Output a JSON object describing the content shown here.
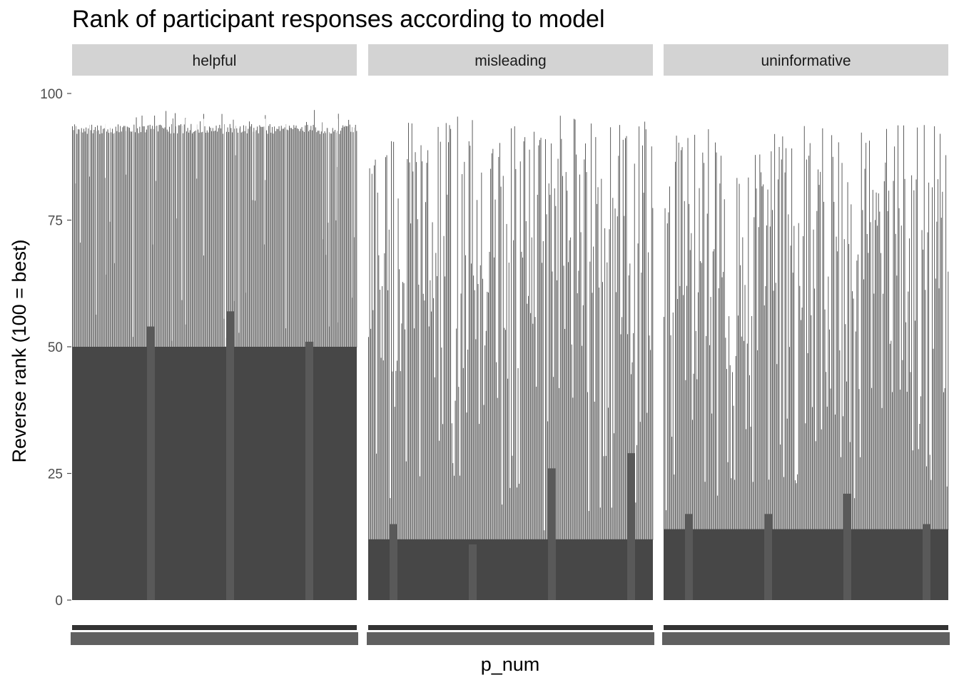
{
  "chart_data": {
    "type": "bar",
    "title": "Rank of participant responses according to model",
    "xlabel": "p_num",
    "ylabel": "Reverse rank (100 = best)",
    "ylim": [
      0,
      100
    ],
    "y_ticks": [
      0,
      25,
      50,
      75,
      100
    ],
    "grid": false,
    "legend": "none",
    "facets": [
      {
        "label": "helpful",
        "typical_max": 94,
        "typical_min": 50,
        "highlight_bars": [
          {
            "value": 54
          },
          {
            "value": 57
          },
          {
            "value": 51
          }
        ]
      },
      {
        "label": "misleading",
        "typical_max": 92,
        "typical_min": 12,
        "highlight_bars": [
          {
            "value": 15
          },
          {
            "value": 11
          },
          {
            "value": 26
          },
          {
            "value": 29
          }
        ]
      },
      {
        "label": "uninformative",
        "typical_max": 90,
        "typical_min": 14,
        "highlight_bars": [
          {
            "value": 17
          },
          {
            "value": 17
          },
          {
            "value": 21
          },
          {
            "value": 15
          }
        ]
      }
    ],
    "colors": {
      "bar": "#474747",
      "highlight_bar": "#595959",
      "strip": "#d3d3d3",
      "tick": "#4d4d4d",
      "x_tick_band": "#333333"
    }
  }
}
